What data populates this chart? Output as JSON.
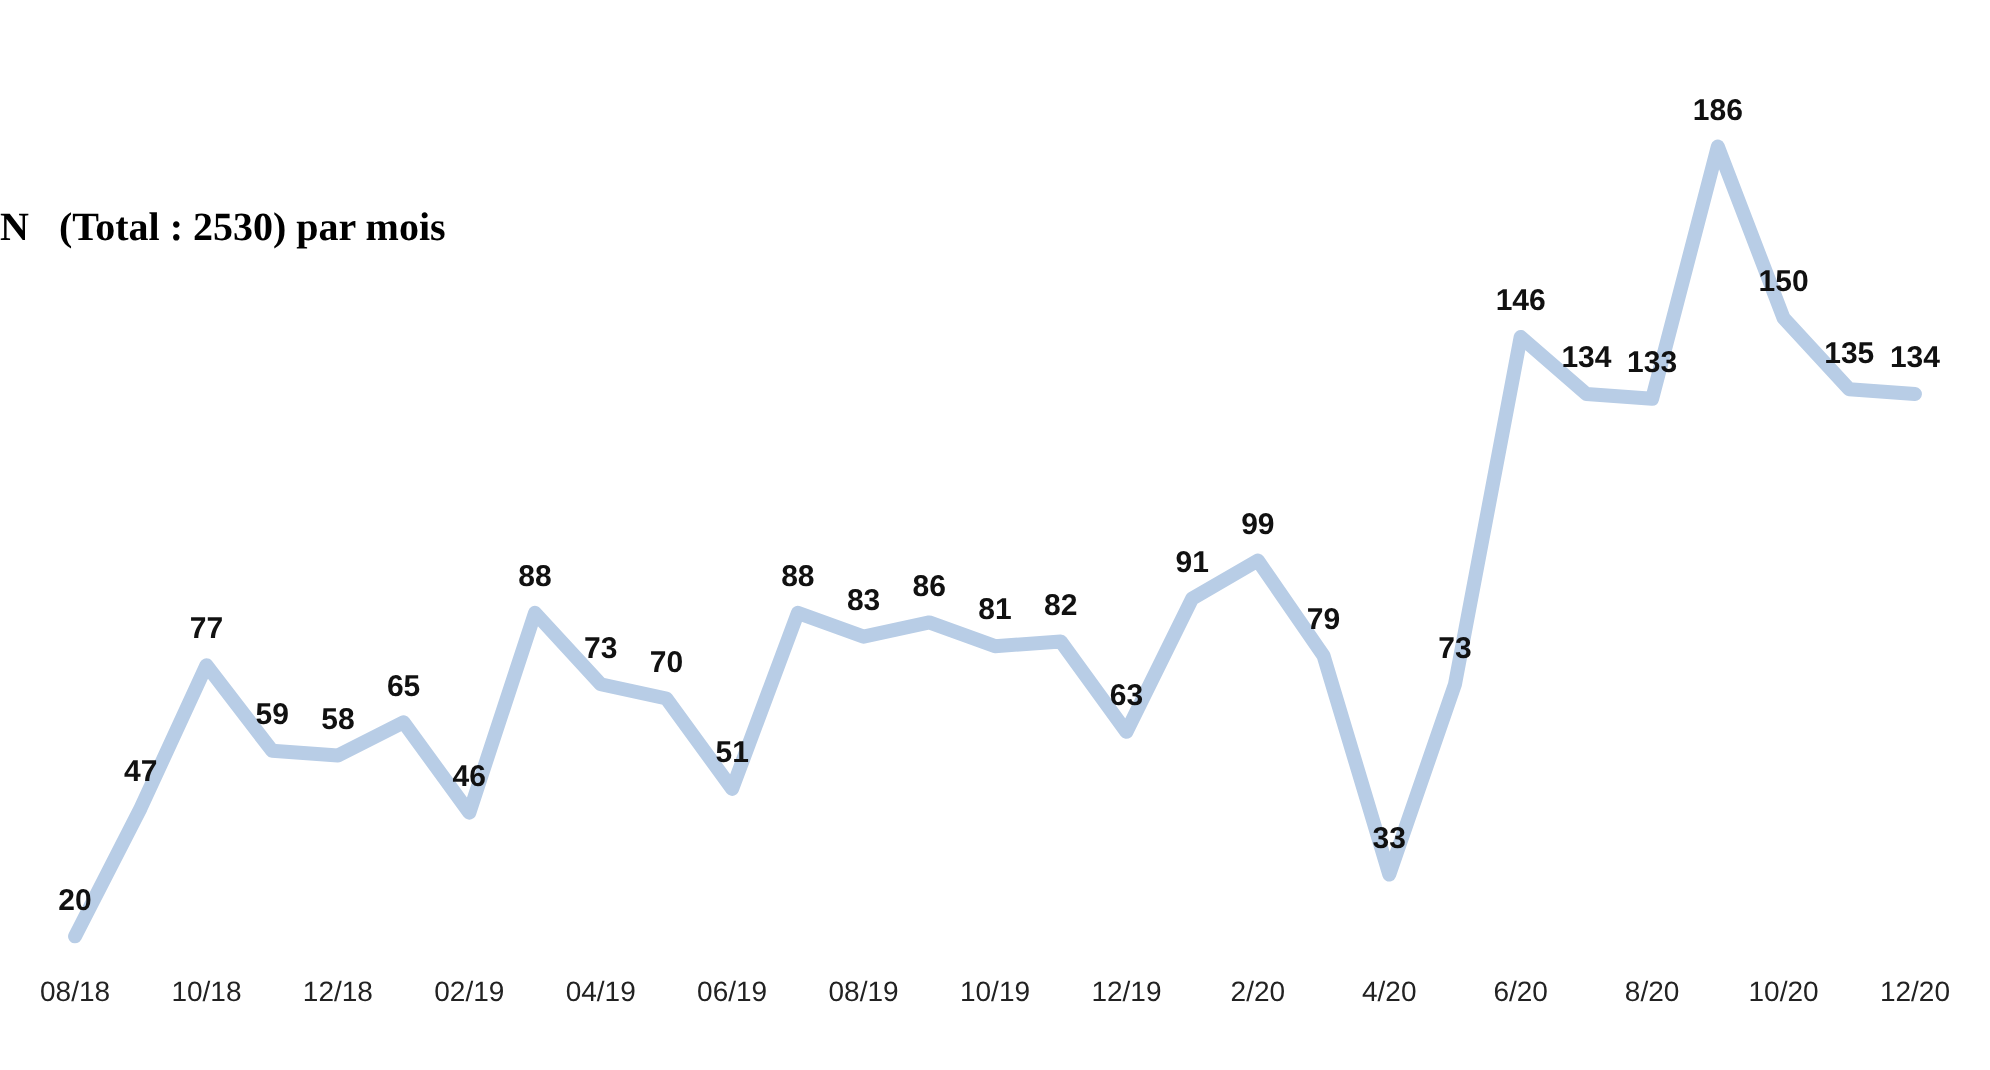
{
  "chart_data": {
    "type": "line",
    "title": "N   (Total : 2530) par mois",
    "categories": [
      "08/18",
      null,
      "10/18",
      null,
      "12/18",
      null,
      "02/19",
      null,
      "04/19",
      null,
      "06/19",
      null,
      "08/19",
      null,
      "10/19",
      null,
      "12/19",
      null,
      "2/20",
      null,
      "4/20",
      null,
      "6/20",
      null,
      "8/20",
      null,
      "10/20",
      null,
      "12/20"
    ],
    "values": [
      20,
      47,
      77,
      59,
      58,
      65,
      46,
      88,
      73,
      70,
      51,
      88,
      83,
      86,
      81,
      82,
      63,
      91,
      99,
      79,
      33,
      73,
      146,
      134,
      133,
      186,
      150,
      135,
      134
    ],
    "color": "#b8cde6",
    "data_labels": true,
    "legend": false,
    "grid": false,
    "marker": "none"
  }
}
